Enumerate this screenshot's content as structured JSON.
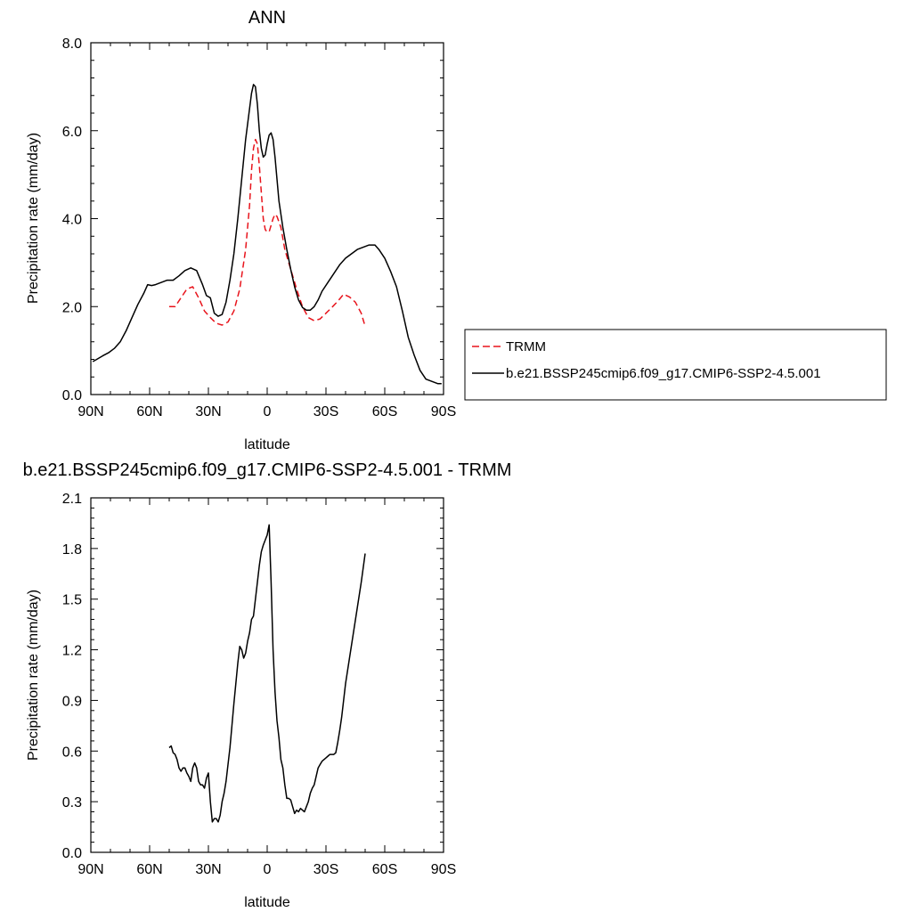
{
  "colors": {
    "trmm": "#e8141c",
    "model": "#000000",
    "frame": "#000000"
  },
  "legend": {
    "position": "right of top panel",
    "entries": [
      {
        "label": "TRMM",
        "style": "dashed",
        "color": "#e8141c"
      },
      {
        "label": "b.e21.BSSP245cmip6.f09_g17.CMIP6-SSP2-4.5.001",
        "style": "solid",
        "color": "#000000"
      }
    ]
  },
  "chart_data": [
    {
      "type": "line",
      "title": "ANN",
      "xlabel": "latitude",
      "ylabel": "Precipitation rate (mm/day)",
      "xlim": [
        90,
        -90
      ],
      "ylim": [
        0,
        8
      ],
      "xticks": [
        90,
        60,
        30,
        0,
        -30,
        -60,
        -90
      ],
      "xtick_labels": [
        "90N",
        "60N",
        "30N",
        "0",
        "30S",
        "60S",
        "90S"
      ],
      "yticks": [
        0,
        2,
        4,
        6,
        8
      ],
      "ytick_labels": [
        "0.0",
        "2.0",
        "4.0",
        "6.0",
        "8.0"
      ],
      "grid": false,
      "series": [
        {
          "name": "TRMM",
          "style": "dashed",
          "x": [
            50,
            47,
            44,
            41,
            38,
            35,
            32,
            29,
            26,
            23,
            20,
            17,
            14,
            11,
            9,
            8,
            7,
            6,
            5,
            4,
            3,
            2,
            1,
            0,
            -1,
            -2,
            -3,
            -4,
            -5,
            -7,
            -9,
            -12,
            -15,
            -18,
            -21,
            -24,
            -27,
            -30,
            -33,
            -36,
            -39,
            -42,
            -45,
            -48,
            -50
          ],
          "values": [
            2.0,
            2.0,
            2.2,
            2.4,
            2.45,
            2.2,
            1.9,
            1.75,
            1.62,
            1.58,
            1.65,
            1.9,
            2.4,
            3.3,
            4.3,
            5.1,
            5.6,
            5.8,
            5.7,
            5.2,
            4.6,
            4.0,
            3.75,
            3.7,
            3.7,
            3.85,
            4.0,
            4.1,
            4.05,
            3.8,
            3.3,
            2.85,
            2.4,
            2.0,
            1.75,
            1.68,
            1.72,
            1.85,
            1.98,
            2.12,
            2.28,
            2.22,
            2.1,
            1.85,
            1.55
          ]
        },
        {
          "name": "b.e21.BSSP245cmip6.f09_g17.CMIP6-SSP2-4.5.001",
          "style": "solid",
          "x": [
            89,
            87,
            84,
            81,
            78,
            75,
            72,
            69,
            66,
            63,
            61,
            59,
            57,
            54,
            51,
            48,
            45,
            42,
            39,
            36,
            33,
            31,
            29,
            27,
            25,
            23,
            21,
            19,
            17,
            15,
            13,
            11,
            9,
            8,
            7,
            6,
            5,
            4,
            3,
            2,
            1,
            0,
            -1,
            -2,
            -3,
            -4,
            -5,
            -6,
            -8,
            -10,
            -12,
            -14,
            -16,
            -18,
            -20,
            -22,
            -24,
            -26,
            -28,
            -31,
            -34,
            -37,
            -40,
            -43,
            -46,
            -49,
            -52,
            -55,
            -57,
            -60,
            -63,
            -66,
            -69,
            -72,
            -75,
            -78,
            -81,
            -84,
            -87,
            -89
          ],
          "values": [
            0.75,
            0.8,
            0.88,
            0.95,
            1.05,
            1.2,
            1.45,
            1.75,
            2.05,
            2.3,
            2.5,
            2.48,
            2.5,
            2.55,
            2.6,
            2.6,
            2.7,
            2.82,
            2.88,
            2.82,
            2.5,
            2.25,
            2.2,
            1.85,
            1.78,
            1.82,
            2.1,
            2.6,
            3.2,
            4.0,
            4.9,
            5.8,
            6.5,
            6.85,
            7.05,
            7.0,
            6.6,
            6.0,
            5.6,
            5.4,
            5.45,
            5.7,
            5.9,
            5.95,
            5.8,
            5.4,
            4.9,
            4.4,
            3.8,
            3.3,
            2.85,
            2.45,
            2.15,
            1.98,
            1.92,
            1.92,
            2.0,
            2.15,
            2.35,
            2.55,
            2.75,
            2.95,
            3.1,
            3.2,
            3.3,
            3.35,
            3.4,
            3.4,
            3.3,
            3.1,
            2.8,
            2.45,
            1.9,
            1.3,
            0.9,
            0.55,
            0.35,
            0.3,
            0.25,
            0.25
          ]
        }
      ]
    },
    {
      "type": "line",
      "title": "b.e21.BSSP245cmip6.f09_g17.CMIP6-SSP2-4.5.001 - TRMM",
      "xlabel": "latitude",
      "ylabel": "Precipitation rate (mm/day)",
      "xlim": [
        90,
        -90
      ],
      "ylim": [
        0,
        2.1
      ],
      "xticks": [
        90,
        60,
        30,
        0,
        -30,
        -60,
        -90
      ],
      "xtick_labels": [
        "90N",
        "60N",
        "30N",
        "0",
        "30S",
        "60S",
        "90S"
      ],
      "yticks": [
        0,
        0.3,
        0.6,
        0.9,
        1.2,
        1.5,
        1.8,
        2.1
      ],
      "ytick_labels": [
        "0.0",
        "0.3",
        "0.6",
        "0.9",
        "1.2",
        "1.5",
        "1.8",
        "2.1"
      ],
      "grid": false,
      "series": [
        {
          "style": "solid",
          "x": [
            50,
            49,
            48,
            47,
            46,
            45,
            44,
            43,
            42,
            41,
            40,
            39,
            38,
            37,
            36,
            35,
            34,
            33,
            32,
            31,
            30,
            29,
            28,
            27,
            26,
            25,
            24,
            23,
            22,
            21,
            20,
            19,
            18,
            17,
            16,
            15,
            14,
            13,
            12,
            11,
            10,
            9,
            8,
            7,
            6,
            5,
            4,
            3,
            2,
            1,
            0,
            -1,
            -2,
            -3,
            -4,
            -5,
            -6,
            -7,
            -8,
            -9,
            -10,
            -11,
            -12,
            -13,
            -14,
            -15,
            -16,
            -17,
            -18,
            -19,
            -20,
            -21,
            -22,
            -23,
            -24,
            -25,
            -26,
            -27,
            -28,
            -29,
            -30,
            -31,
            -32,
            -33,
            -34,
            -35,
            -36,
            -37,
            -38,
            -39,
            -40,
            -42,
            -44,
            -46,
            -48,
            -50
          ],
          "values": [
            0.62,
            0.63,
            0.59,
            0.58,
            0.55,
            0.5,
            0.48,
            0.5,
            0.5,
            0.47,
            0.45,
            0.42,
            0.5,
            0.53,
            0.5,
            0.42,
            0.4,
            0.4,
            0.38,
            0.44,
            0.47,
            0.3,
            0.18,
            0.2,
            0.2,
            0.18,
            0.22,
            0.3,
            0.35,
            0.42,
            0.52,
            0.62,
            0.75,
            0.88,
            1.0,
            1.12,
            1.22,
            1.2,
            1.15,
            1.18,
            1.25,
            1.3,
            1.38,
            1.4,
            1.5,
            1.6,
            1.7,
            1.78,
            1.82,
            1.85,
            1.88,
            1.94,
            1.6,
            1.2,
            0.95,
            0.78,
            0.68,
            0.55,
            0.5,
            0.4,
            0.32,
            0.32,
            0.31,
            0.27,
            0.23,
            0.25,
            0.24,
            0.26,
            0.25,
            0.24,
            0.27,
            0.3,
            0.35,
            0.38,
            0.4,
            0.45,
            0.5,
            0.52,
            0.54,
            0.55,
            0.56,
            0.57,
            0.58,
            0.58,
            0.58,
            0.59,
            0.65,
            0.72,
            0.8,
            0.9,
            1.0,
            1.15,
            1.3,
            1.45,
            1.6,
            1.77
          ]
        }
      ]
    }
  ]
}
